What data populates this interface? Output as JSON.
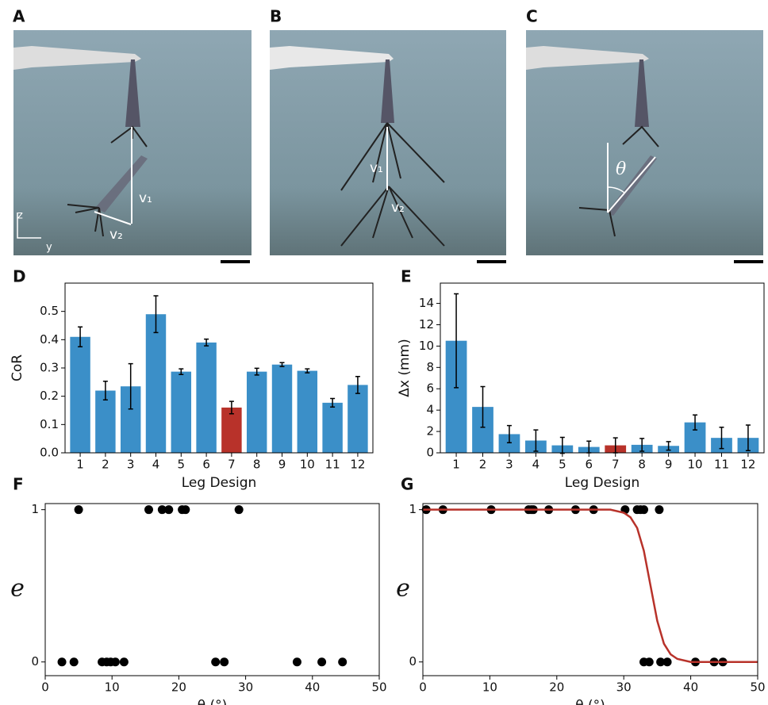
{
  "panel_labels": [
    "A",
    "B",
    "C",
    "D",
    "E",
    "F",
    "G"
  ],
  "photo_annotations": [
    "v₁",
    "v₂",
    "z",
    "y",
    "v₁",
    "v₂",
    "θ"
  ],
  "chart_data": [
    {
      "type": "bar",
      "xlabel": "Leg Design",
      "ylabel": "CoR",
      "categories": [
        "1",
        "2",
        "3",
        "4",
        "5",
        "6",
        "7",
        "8",
        "9",
        "10",
        "11",
        "12"
      ],
      "values": [
        0.41,
        0.22,
        0.235,
        0.49,
        0.287,
        0.39,
        0.16,
        0.287,
        0.312,
        0.29,
        0.177,
        0.24
      ],
      "errors": [
        0.035,
        0.033,
        0.08,
        0.065,
        0.01,
        0.012,
        0.022,
        0.012,
        0.007,
        0.007,
        0.015,
        0.03
      ],
      "colors": [
        "#3b8fc8",
        "#3b8fc8",
        "#3b8fc8",
        "#3b8fc8",
        "#3b8fc8",
        "#3b8fc8",
        "#b8322a",
        "#3b8fc8",
        "#3b8fc8",
        "#3b8fc8",
        "#3b8fc8",
        "#3b8fc8"
      ],
      "ylim": [
        0,
        0.6
      ],
      "yticks": [
        {
          "value": 0,
          "label": "0.0"
        },
        0.1,
        0.2,
        0.3,
        0.4,
        0.5
      ]
    },
    {
      "type": "bar",
      "xlabel": "Leg Design",
      "ylabel": "Δx (mm)",
      "categories": [
        "1",
        "2",
        "3",
        "4",
        "5",
        "6",
        "7",
        "8",
        "9",
        "10",
        "11",
        "12"
      ],
      "values": [
        10.5,
        4.3,
        1.75,
        1.15,
        0.7,
        0.55,
        0.7,
        0.75,
        0.65,
        2.85,
        1.4,
        1.4
      ],
      "errors": [
        4.4,
        1.9,
        0.8,
        1.0,
        0.75,
        0.55,
        0.7,
        0.6,
        0.4,
        0.7,
        1.0,
        1.2
      ],
      "colors": [
        "#3b8fc8",
        "#3b8fc8",
        "#3b8fc8",
        "#3b8fc8",
        "#3b8fc8",
        "#3b8fc8",
        "#b8322a",
        "#3b8fc8",
        "#3b8fc8",
        "#3b8fc8",
        "#3b8fc8",
        "#3b8fc8"
      ],
      "ylim": [
        0,
        15.9
      ],
      "yticks": [
        0,
        2,
        4,
        6,
        8,
        10,
        12,
        14
      ]
    },
    {
      "type": "scatter",
      "xlabel": "θ (°)",
      "ylabel": "e",
      "series": [
        {
          "kind": "scatter",
          "color": "#000000",
          "x": [
            5,
            15.5,
            17.5,
            18.5,
            20.5,
            21,
            29,
            2.5,
            4.3,
            8.5,
            9.2,
            9.8,
            10.5,
            11.8,
            25.5,
            26.8,
            37.7,
            41.4,
            44.5
          ],
          "values": [
            1,
            1,
            1,
            1,
            1,
            1,
            1,
            0,
            0,
            0,
            0,
            0,
            0,
            0,
            0,
            0,
            0,
            0,
            0
          ]
        }
      ],
      "xlim": [
        0,
        50
      ],
      "xticks": [
        0,
        10,
        20,
        30,
        40,
        50
      ],
      "ylim": [
        -0.09,
        1.04
      ],
      "yticks": [
        0,
        1
      ]
    },
    {
      "type": "scatter",
      "xlabel": "θ (°)",
      "ylabel": "e",
      "series": [
        {
          "kind": "scatter",
          "color": "#000000",
          "x": [
            0.5,
            3,
            10.2,
            15.8,
            16.2,
            16.5,
            18.8,
            22.8,
            25.5,
            30.2,
            32,
            32.5,
            33,
            35.3,
            33,
            33.8,
            35.5,
            36.5,
            40.7,
            43.5,
            44.8
          ],
          "values": [
            1,
            1,
            1,
            1,
            1,
            1,
            1,
            1,
            1,
            1,
            1,
            1,
            1,
            1,
            0,
            0,
            0,
            0,
            0,
            0,
            0
          ]
        },
        {
          "kind": "line",
          "color": "#b8322a",
          "x": [
            0,
            5,
            10,
            15,
            20,
            25,
            28,
            30,
            31,
            32,
            33,
            34,
            35,
            36,
            37,
            38,
            40,
            45,
            50
          ],
          "values": [
            1,
            1,
            1,
            1,
            1,
            1,
            1,
            0.98,
            0.95,
            0.88,
            0.73,
            0.5,
            0.27,
            0.12,
            0.05,
            0.02,
            0,
            0,
            0
          ]
        }
      ],
      "xlim": [
        0,
        50
      ],
      "xticks": [
        0,
        10,
        20,
        30,
        40,
        50
      ],
      "ylim": [
        -0.09,
        1.04
      ],
      "yticks": [
        0,
        1
      ]
    }
  ]
}
